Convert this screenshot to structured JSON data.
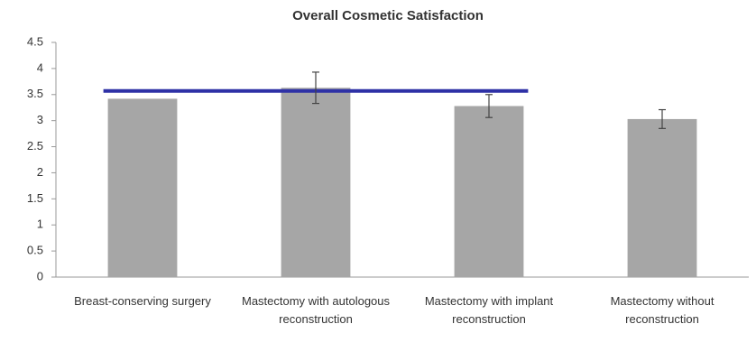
{
  "chart_data": {
    "type": "bar",
    "title": "Overall Cosmetic Satisfaction",
    "categories": [
      "Breast-conserving surgery",
      "Mastectomy with autologous reconstruction",
      "Mastectomy with implant reconstruction",
      "Mastectomy without reconstruction"
    ],
    "values": [
      3.42,
      3.63,
      3.28,
      3.03
    ],
    "errors": [
      null,
      0.3,
      0.22,
      0.18
    ],
    "color": "#a6a6a6",
    "ylim": [
      0,
      4.5
    ],
    "yticks": [
      0,
      0.5,
      1,
      1.5,
      2,
      2.5,
      3,
      3.5,
      4,
      4.5
    ],
    "grid": false,
    "reference_line": {
      "value": 3.57,
      "color": "#2e31a6"
    }
  }
}
